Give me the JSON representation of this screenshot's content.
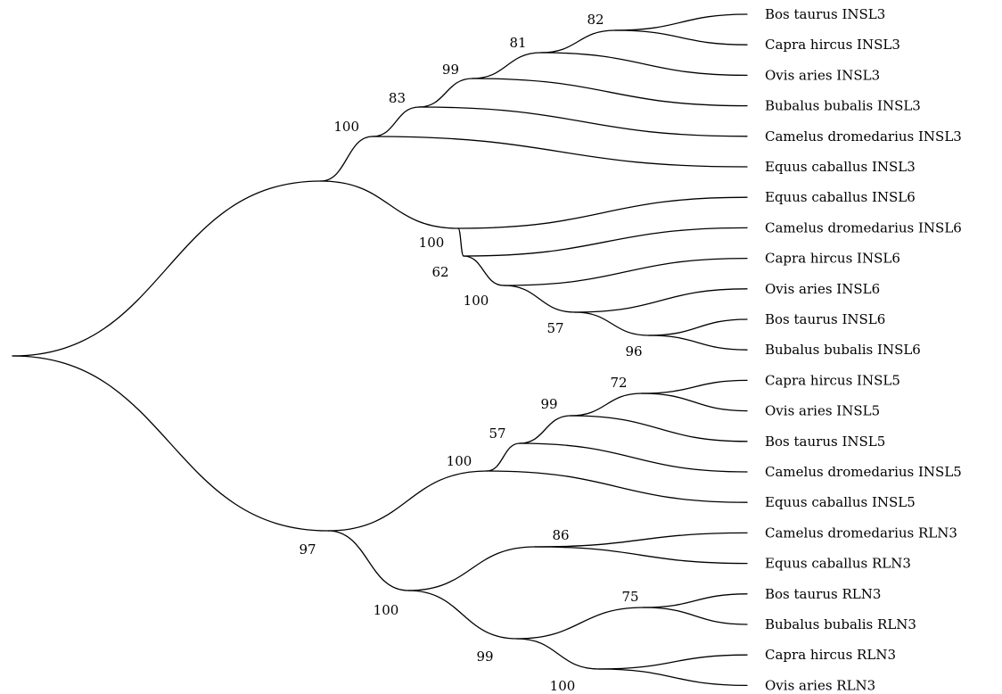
{
  "leaves": [
    {
      "id": "bt3",
      "label": "Bos taurus INSL3"
    },
    {
      "id": "ch3",
      "label": "Capra hircus INSL3"
    },
    {
      "id": "oa3",
      "label": "Ovis aries INSL3"
    },
    {
      "id": "bb3",
      "label": "Bubalus bubalis INSL3"
    },
    {
      "id": "cd3",
      "label": "Camelus dromedarius INSL3"
    },
    {
      "id": "ec3",
      "label": "Equus caballus INSL3"
    },
    {
      "id": "ec6",
      "label": "Equus caballus INSL6"
    },
    {
      "id": "cd6",
      "label": "Camelus dromedarius INSL6"
    },
    {
      "id": "ch6",
      "label": "Capra hircus INSL6"
    },
    {
      "id": "oa6",
      "label": "Ovis aries INSL6"
    },
    {
      "id": "bt6",
      "label": "Bos taurus INSL6"
    },
    {
      "id": "bb6",
      "label": "Bubalus bubalis INSL6"
    },
    {
      "id": "ch5",
      "label": "Capra hircus INSL5"
    },
    {
      "id": "oa5",
      "label": "Ovis aries INSL5"
    },
    {
      "id": "bt5",
      "label": "Bos taurus INSL5"
    },
    {
      "id": "cd5",
      "label": "Camelus dromedarius INSL5"
    },
    {
      "id": "ec5",
      "label": "Equus caballus INSL5"
    },
    {
      "id": "cdR",
      "label": "Camelus dromedarius RLN3"
    },
    {
      "id": "ecR",
      "label": "Equus caballus RLN3"
    },
    {
      "id": "btR",
      "label": "Bos taurus RLN3"
    },
    {
      "id": "bbR",
      "label": "Bubalus bubalis RLN3"
    },
    {
      "id": "chR",
      "label": "Capra hircus RLN3"
    },
    {
      "id": "oaR",
      "label": "Ovis aries RLN3"
    }
  ],
  "nodes": [
    {
      "id": "root",
      "parent": null,
      "support": ""
    },
    {
      "id": "n_insl36",
      "parent": "root",
      "support": ""
    },
    {
      "id": "n_insl3",
      "parent": "n_insl36",
      "support": "100"
    },
    {
      "id": "n_83",
      "parent": "n_insl3",
      "support": "83"
    },
    {
      "id": "n_99",
      "parent": "n_83",
      "support": "99"
    },
    {
      "id": "n_81",
      "parent": "n_99",
      "support": "81"
    },
    {
      "id": "n_82",
      "parent": "n_81",
      "support": "82"
    },
    {
      "id": "n_insl6",
      "parent": "n_insl36",
      "support": "100"
    },
    {
      "id": "n_62",
      "parent": "n_insl6",
      "support": "62"
    },
    {
      "id": "n_100b",
      "parent": "n_62",
      "support": "100"
    },
    {
      "id": "n_57",
      "parent": "n_100b",
      "support": "57"
    },
    {
      "id": "n_96",
      "parent": "n_57",
      "support": "96"
    },
    {
      "id": "n_97",
      "parent": "root",
      "support": "97"
    },
    {
      "id": "n_insl5",
      "parent": "n_97",
      "support": "100"
    },
    {
      "id": "n_57b",
      "parent": "n_insl5",
      "support": "57"
    },
    {
      "id": "n_99b",
      "parent": "n_57b",
      "support": "99"
    },
    {
      "id": "n_72",
      "parent": "n_99b",
      "support": "72"
    },
    {
      "id": "n_rln3",
      "parent": "n_97",
      "support": "100"
    },
    {
      "id": "n_86",
      "parent": "n_rln3",
      "support": "86"
    },
    {
      "id": "n_99c",
      "parent": "n_rln3",
      "support": "99"
    },
    {
      "id": "n_75",
      "parent": "n_99c",
      "support": "75"
    },
    {
      "id": "n_100c",
      "parent": "n_99c",
      "support": "100"
    }
  ],
  "leaf_parents": {
    "bt3": "n_82",
    "ch3": "n_82",
    "oa3": "n_81",
    "bb3": "n_99",
    "cd3": "n_83",
    "ec3": "n_insl3",
    "ec6": "n_insl6",
    "cd6": "n_62",
    "ch6": "n_100b",
    "oa6": "n_57",
    "bt6": "n_96",
    "bb6": "n_96",
    "ch5": "n_72",
    "oa5": "n_72",
    "bt5": "n_99b",
    "cd5": "n_57b",
    "ec5": "n_insl5",
    "cdR": "n_86",
    "ecR": "n_86",
    "btR": "n_75",
    "bbR": "n_75",
    "chR": "n_100c",
    "oaR": "n_100c"
  }
}
